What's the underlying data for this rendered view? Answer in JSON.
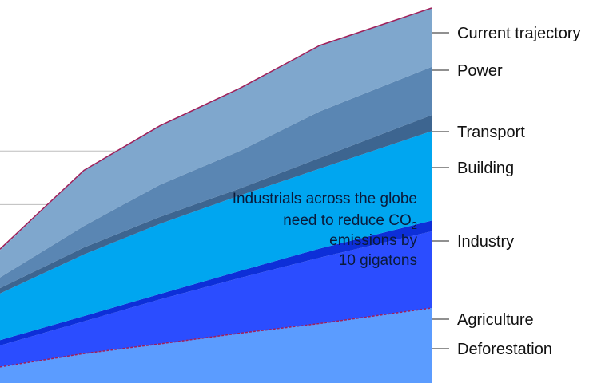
{
  "chart_data": {
    "type": "area",
    "stacked": true,
    "x": [
      0,
      105,
      200,
      300,
      400,
      540
    ],
    "series": [
      {
        "name": "Deforestation",
        "color": "#5b9cff",
        "values": [
          0.3,
          0.55,
          0.73,
          0.93,
          1.11,
          1.4
        ]
      },
      {
        "name": "Agriculture",
        "color": "#2b4dff",
        "values": [
          0.4,
          0.6,
          0.83,
          1.03,
          1.23,
          1.43
        ]
      },
      {
        "name": "Industry",
        "color": "#0d2fd8",
        "values": [
          0.1,
          0.1,
          0.1,
          0.13,
          0.17,
          0.2
        ]
      },
      {
        "name": "Industry",
        "color": "#00a6f0",
        "values": [
          0.87,
          1.15,
          1.31,
          1.41,
          1.49,
          1.67
        ]
      },
      {
        "name": "Building",
        "color": "#3d6590",
        "values": [
          0.1,
          0.13,
          0.13,
          0.13,
          0.2,
          0.3
        ]
      },
      {
        "name": "Transport",
        "color": "#5a86b3",
        "values": [
          0.2,
          0.4,
          0.6,
          0.7,
          0.87,
          0.9
        ]
      },
      {
        "name": "Power",
        "color": "#7fa7cd",
        "values": [
          0.5,
          1.03,
          1.1,
          1.17,
          1.23,
          1.1
        ]
      }
    ],
    "current_trajectory": {
      "name": "Current trajectory",
      "color": "#a0205a",
      "values": [
        2.5,
        3.97,
        4.8,
        5.5,
        6.3,
        7.0
      ]
    },
    "lower_bound_line": {
      "color": "#a0205a",
      "style": "dotted",
      "values": [
        0.3,
        0.55,
        0.73,
        0.93,
        1.11,
        1.4
      ]
    },
    "gridlines_y": [
      0.33,
      1.33,
      2.33,
      3.33,
      4.33
    ],
    "legend": [
      "Current trajectory",
      "Power",
      "Transport",
      "Building",
      "Industry",
      "Agriculture",
      "Deforestation"
    ],
    "annotation": {
      "line1": "Industrials across the globe",
      "line2_main": "need to reduce CO",
      "line2_sub": "2",
      "line3": "emissions by",
      "line4": "10 gigatons"
    },
    "ylim": [
      0,
      7
    ],
    "grid": true
  }
}
